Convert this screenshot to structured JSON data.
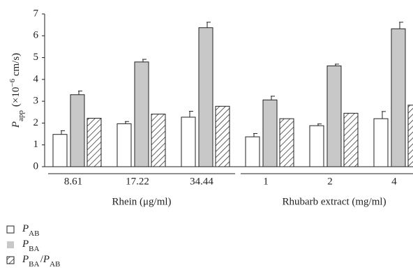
{
  "chart_data": {
    "type": "bar",
    "y_label": "P_app (×10^−6 cm/s)",
    "groups": [
      {
        "label": "Rhein (μg/ml)",
        "categories": [
          "8.61",
          "17.22",
          "34.44"
        ]
      },
      {
        "label": "Rhubarb extract (mg/ml)",
        "categories": [
          "1",
          "2",
          "4"
        ]
      }
    ],
    "series": [
      {
        "name": "P_AB",
        "color": "#ffffff",
        "values": [
          1.48,
          1.97,
          2.27,
          1.37,
          1.88,
          2.2
        ],
        "errors": [
          0.17,
          0.1,
          0.27,
          0.15,
          0.08,
          0.33
        ]
      },
      {
        "name": "P_BA",
        "color": "#c8c8c8",
        "values": [
          3.3,
          4.8,
          6.37,
          3.06,
          4.62,
          6.32
        ],
        "errors": [
          0.17,
          0.12,
          0.25,
          0.17,
          0.08,
          0.3
        ]
      },
      {
        "name": "P_BA/P_AB",
        "color": "hatch",
        "values": [
          2.22,
          2.41,
          2.77,
          2.2,
          2.45,
          2.82
        ]
      }
    ],
    "ylim": [
      0,
      7
    ],
    "yticks": [
      0,
      1,
      2,
      3,
      4,
      5,
      6,
      7
    ]
  }
}
